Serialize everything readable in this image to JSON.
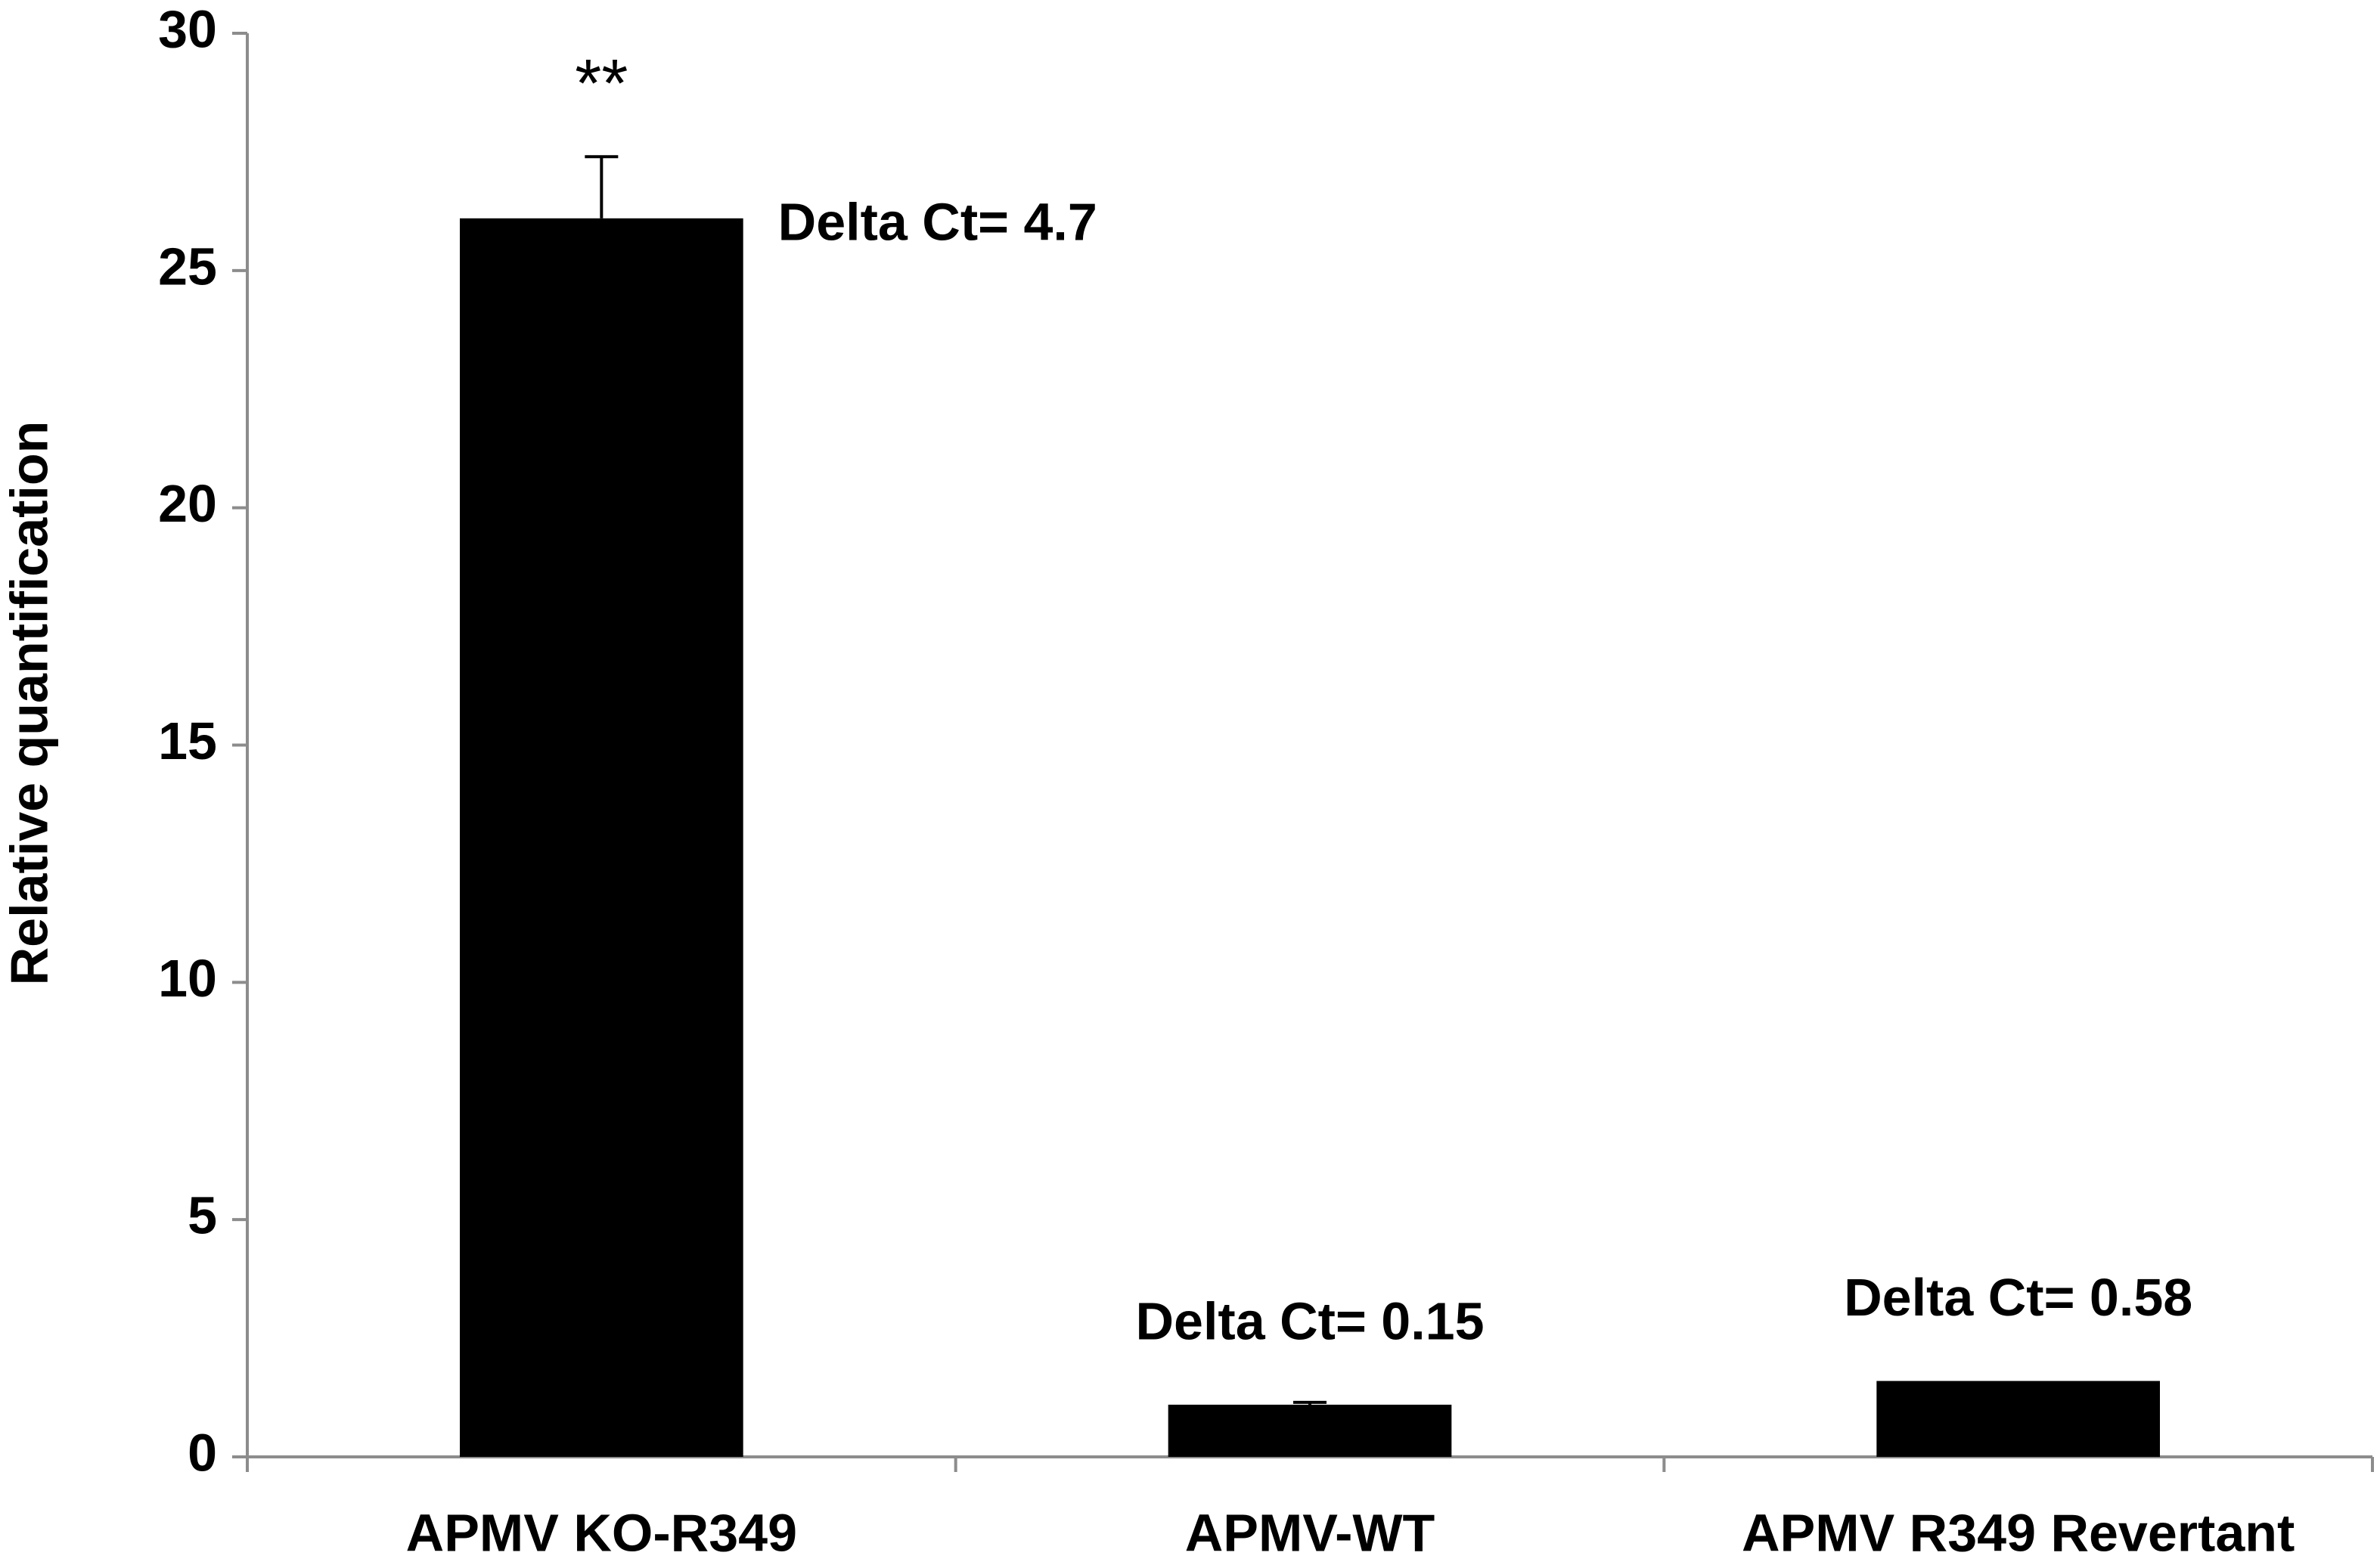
{
  "chart_data": {
    "type": "bar",
    "ylabel": "Relative quantification",
    "categories": [
      "APMV KO-R349",
      "APMV-WT",
      "APMV R349 Revertant"
    ],
    "values": [
      26.1,
      1.1,
      1.6
    ],
    "errors": [
      1.3,
      0.05,
      null
    ],
    "significance": [
      "**",
      null,
      null
    ],
    "annotations": [
      "Delta Ct= 4.7",
      "Delta Ct= 0.15",
      "Delta Ct= 0.58"
    ],
    "color": "#000000",
    "ylim": [
      0,
      30
    ],
    "yticks": [
      0,
      5,
      10,
      15,
      20,
      25,
      30
    ],
    "grid": false
  }
}
